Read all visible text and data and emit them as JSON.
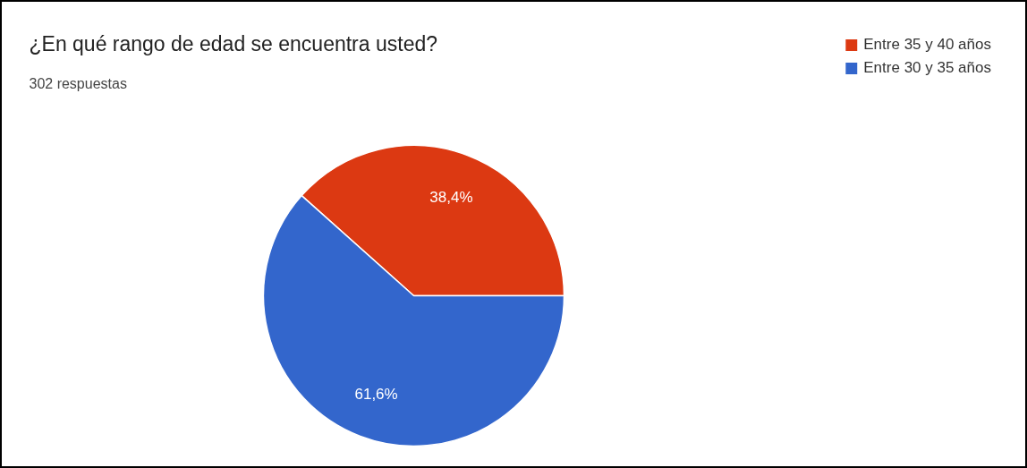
{
  "chart_data": {
    "type": "pie",
    "title": "¿En qué rango de edad se encuentra usted?",
    "subtitle": "302 respuestas",
    "categories": [
      "Entre 35 y 40 años",
      "Entre 30 y 35 años"
    ],
    "values": [
      38.4,
      61.6
    ],
    "colors": [
      "#dc3912",
      "#3366cc"
    ],
    "value_labels": [
      "38,4%",
      "61,6%"
    ],
    "legend": "top right"
  }
}
